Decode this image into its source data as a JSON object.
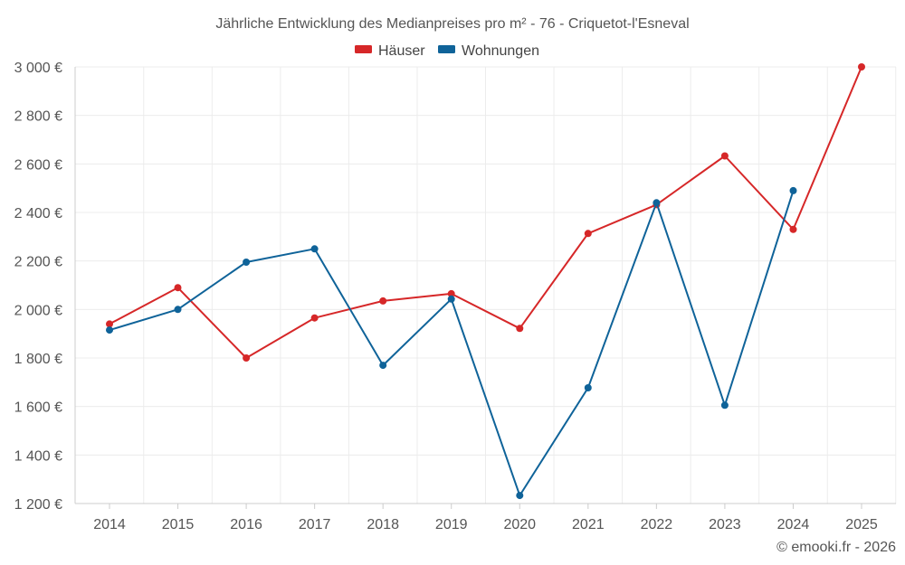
{
  "chart_data": {
    "type": "line",
    "title": "Jährliche Entwicklung des Medianpreises pro m² - 76 - Criquetot-l'Esneval",
    "categories": [
      "2014",
      "2015",
      "2016",
      "2017",
      "2018",
      "2019",
      "2020",
      "2021",
      "2022",
      "2023",
      "2024",
      "2025"
    ],
    "series": [
      {
        "name": "Häuser",
        "color": "#d62728",
        "values": [
          1940,
          2090,
          1800,
          1965,
          2035,
          2065,
          1922,
          2313,
          2432,
          2633,
          2330,
          3000
        ]
      },
      {
        "name": "Wohnungen",
        "color": "#0f6399",
        "values": [
          1915,
          2000,
          2195,
          2250,
          1770,
          2043,
          1233,
          1677,
          2440,
          1605,
          2490,
          null
        ]
      }
    ],
    "ylim": [
      1200,
      3000
    ],
    "yticks": [
      1200,
      1400,
      1600,
      1800,
      2000,
      2200,
      2400,
      2600,
      2800,
      3000
    ],
    "ytick_labels": [
      "1 200 €",
      "1 400 €",
      "1 600 €",
      "1 800 €",
      "2 000 €",
      "2 200 €",
      "2 400 €",
      "2 600 €",
      "2 800 €",
      "3 000 €"
    ],
    "xlabel": "",
    "ylabel": "",
    "grid": true,
    "legend_position": "top-center"
  },
  "credit": "© emooki.fr - 2026"
}
